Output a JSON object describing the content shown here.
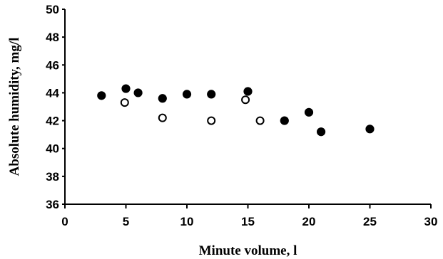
{
  "chart_data": {
    "type": "scatter",
    "xlabel": "Minute volume, l",
    "ylabel": "Absolute humidity, mg/l",
    "xlim": [
      0,
      30
    ],
    "ylim": [
      36,
      50
    ],
    "xticks": [
      0,
      5,
      10,
      15,
      20,
      25,
      30
    ],
    "yticks": [
      36,
      38,
      40,
      42,
      44,
      46,
      48,
      50
    ],
    "grid": false,
    "series": [
      {
        "marker": "filled-circle",
        "color": "#000000",
        "points": [
          {
            "x": 3,
            "y": 43.8
          },
          {
            "x": 5,
            "y": 44.3
          },
          {
            "x": 6,
            "y": 44.0
          },
          {
            "x": 8,
            "y": 43.6
          },
          {
            "x": 10,
            "y": 43.9
          },
          {
            "x": 12,
            "y": 43.9
          },
          {
            "x": 15,
            "y": 44.1
          },
          {
            "x": 18,
            "y": 42.0
          },
          {
            "x": 20,
            "y": 42.6
          },
          {
            "x": 21,
            "y": 41.2
          },
          {
            "x": 25,
            "y": 41.4
          }
        ]
      },
      {
        "marker": "open-circle",
        "color": "#000000",
        "points": [
          {
            "x": 4.9,
            "y": 43.3
          },
          {
            "x": 8,
            "y": 42.2
          },
          {
            "x": 12,
            "y": 42.0
          },
          {
            "x": 14.8,
            "y": 43.5
          },
          {
            "x": 16,
            "y": 42.0
          }
        ]
      }
    ]
  }
}
